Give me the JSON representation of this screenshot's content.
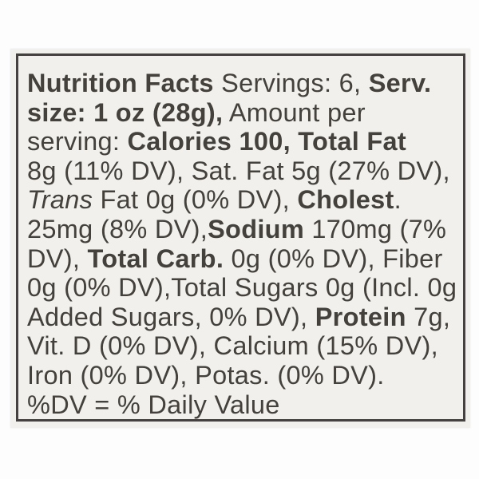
{
  "label": {
    "title": "Nutrition Facts",
    "lines": [
      [
        {
          "t": "Nutrition Facts",
          "b": true
        },
        {
          "t": " Servings: 6, "
        },
        {
          "t": "Serv.",
          "b": true
        }
      ],
      [
        {
          "t": "size: 1 oz (28g),",
          "b": true
        },
        {
          "t": " Amount per"
        }
      ],
      [
        {
          "t": "serving: "
        },
        {
          "t": "Calories 100, Total Fat",
          "b": true
        }
      ],
      [
        {
          "t": "8g (11% DV), Sat. Fat 5g (27% DV),"
        }
      ],
      [
        {
          "t": "Trans",
          "i": true
        },
        {
          "t": " Fat 0g (0% DV), "
        },
        {
          "t": "Cholest",
          "b": true
        },
        {
          "t": "."
        }
      ],
      [
        {
          "t": "25mg (8% DV),"
        },
        {
          "t": "Sodium",
          "b": true
        },
        {
          "t": " 170mg (7%"
        }
      ],
      [
        {
          "t": "DV), "
        },
        {
          "t": "Total Carb.",
          "b": true
        },
        {
          "t": " 0g (0% DV), Fiber"
        }
      ],
      [
        {
          "t": "0g (0% DV),Total Sugars 0g (Incl. 0g"
        }
      ],
      [
        {
          "t": "Added Sugars, 0% DV), "
        },
        {
          "t": "Protein",
          "b": true
        },
        {
          "t": " 7g,"
        }
      ],
      [
        {
          "t": "Vit. D (0% DV), Calcium (15% DV),"
        }
      ],
      [
        {
          "t": "Iron (0% DV), Potas. (0% DV)."
        }
      ],
      [
        {
          "t": "%DV = % Daily Value"
        }
      ]
    ],
    "facts": {
      "servings": "6",
      "serving_size": "1 oz (28g)",
      "calories": "100",
      "total_fat": "8g (11% DV)",
      "saturated_fat": "5g (27% DV)",
      "trans_fat": "0g (0% DV)",
      "cholesterol": "25mg (8% DV)",
      "sodium": "170mg (7% DV)",
      "total_carbohydrate": "0g (0% DV)",
      "fiber": "0g (0% DV)",
      "total_sugars": "0g",
      "added_sugars": "Incl. 0g Added Sugars, 0% DV",
      "protein": "7g",
      "vitamin_d": "0% DV",
      "calcium": "15% DV",
      "iron": "0% DV",
      "potassium": "0% DV",
      "footnote": "%DV = % Daily Value"
    },
    "colors": {
      "background": "#fdfdfd",
      "paper": "#f1f0ed",
      "border": "#454140",
      "ink": "#44403b"
    }
  }
}
